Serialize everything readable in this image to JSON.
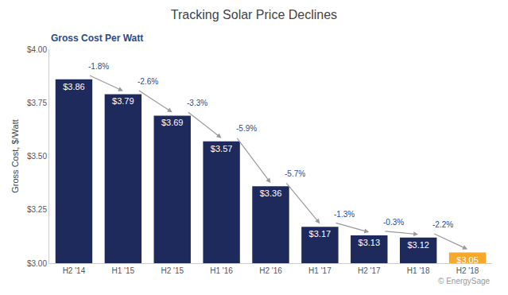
{
  "chart_data": {
    "type": "bar",
    "title": "Tracking Solar Price Declines",
    "subtitle": "Gross Cost Per Watt",
    "y_label": "Gross Cost, $/Watt",
    "source": "© EnergySage",
    "categories": [
      "H2 '14",
      "H1 '15",
      "H2 '15",
      "H1 '16",
      "H2 '16",
      "H1 '17",
      "H2 '17",
      "H1 '18",
      "H2 '18"
    ],
    "values": [
      3.86,
      3.79,
      3.69,
      3.57,
      3.36,
      3.17,
      3.13,
      3.12,
      3.05
    ],
    "value_labels": [
      "$3.86",
      "$3.79",
      "$3.69",
      "$3.57",
      "$3.36",
      "$3.17",
      "$3.13",
      "$3.12",
      "$3.05"
    ],
    "colors": [
      "#1f2a5c",
      "#1f2a5c",
      "#1f2a5c",
      "#1f2a5c",
      "#1f2a5c",
      "#1f2a5c",
      "#1f2a5c",
      "#1f2a5c",
      "#f5a82a"
    ],
    "annotations": [
      "-1.8%",
      "-2.6%",
      "-3.3%",
      "-5.9%",
      "-5.7%",
      "-1.3%",
      "-0.3%",
      "-2.2%"
    ],
    "ylim": [
      3,
      4
    ],
    "yticks": [
      {
        "value": 3,
        "label": "$3.00"
      },
      {
        "value": 3.25,
        "label": "$3.25"
      },
      {
        "value": 3.5,
        "label": "$3.50"
      },
      {
        "value": 3.75,
        "label": "$3.75"
      },
      {
        "value": 4,
        "label": "$4.00"
      }
    ],
    "grid": false,
    "data_labels": true
  }
}
